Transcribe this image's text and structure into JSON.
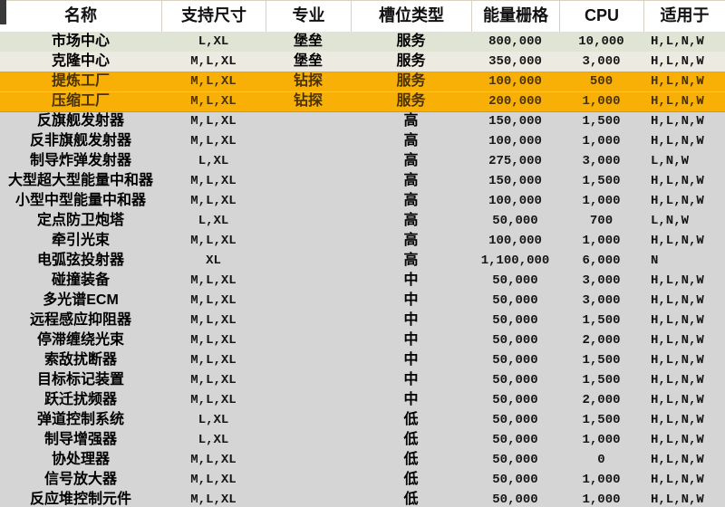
{
  "colors": {
    "header_bg": "#ffffff",
    "top_border": "#d9d2c3",
    "header_separator": "#d5d0c2",
    "row_sage": "#e0e4d5",
    "row_beige": "#edeae1",
    "row_amber": "#f9b006",
    "row_gray": "#d4d5d4",
    "amber_text": "#4a3300",
    "corner_mark": "#3a3a3a"
  },
  "table": {
    "columns": [
      {
        "key": "name",
        "label": "名称"
      },
      {
        "key": "sizes",
        "label": "支持尺寸"
      },
      {
        "key": "specialty",
        "label": "专业"
      },
      {
        "key": "slot",
        "label": "槽位类型"
      },
      {
        "key": "powergrid",
        "label": "能量栅格"
      },
      {
        "key": "cpu",
        "label": "CPU"
      },
      {
        "key": "applicable",
        "label": "适用于"
      }
    ],
    "rows": [
      {
        "name": "市场中心",
        "sizes": "L,XL",
        "specialty": "堡垒",
        "slot": "服务",
        "powergrid": "800,000",
        "cpu": "10,000",
        "applicable": "H,L,N,W",
        "style": "sage"
      },
      {
        "name": "克隆中心",
        "sizes": "M,L,XL",
        "specialty": "堡垒",
        "slot": "服务",
        "powergrid": "350,000",
        "cpu": "3,000",
        "applicable": "H,L,N,W",
        "style": "beige"
      },
      {
        "name": "提炼工厂",
        "sizes": "M,L,XL",
        "specialty": "钻探",
        "slot": "服务",
        "powergrid": "100,000",
        "cpu": "500",
        "applicable": "H,L,N,W",
        "style": "amber"
      },
      {
        "name": "压缩工厂",
        "sizes": "M,L,XL",
        "specialty": "钻探",
        "slot": "服务",
        "powergrid": "200,000",
        "cpu": "1,000",
        "applicable": "H,L,N,W",
        "style": "amber"
      },
      {
        "name": "反旗舰发射器",
        "sizes": "M,L,XL",
        "specialty": "",
        "slot": "高",
        "powergrid": "150,000",
        "cpu": "1,500",
        "applicable": "H,L,N,W",
        "style": "gray"
      },
      {
        "name": "反非旗舰发射器",
        "sizes": "M,L,XL",
        "specialty": "",
        "slot": "高",
        "powergrid": "100,000",
        "cpu": "1,000",
        "applicable": "H,L,N,W",
        "style": "gray"
      },
      {
        "name": "制导炸弹发射器",
        "sizes": "L,XL",
        "specialty": "",
        "slot": "高",
        "powergrid": "275,000",
        "cpu": "3,000",
        "applicable": "L,N,W",
        "style": "gray"
      },
      {
        "name": "大型超大型能量中和器",
        "sizes": "M,L,XL",
        "specialty": "",
        "slot": "高",
        "powergrid": "150,000",
        "cpu": "1,500",
        "applicable": "H,L,N,W",
        "style": "gray"
      },
      {
        "name": "小型中型能量中和器",
        "sizes": "M,L,XL",
        "specialty": "",
        "slot": "高",
        "powergrid": "100,000",
        "cpu": "1,000",
        "applicable": "H,L,N,W",
        "style": "gray"
      },
      {
        "name": "定点防卫炮塔",
        "sizes": "L,XL",
        "specialty": "",
        "slot": "高",
        "powergrid": "50,000",
        "cpu": "700",
        "applicable": "L,N,W",
        "style": "gray"
      },
      {
        "name": "牵引光束",
        "sizes": "M,L,XL",
        "specialty": "",
        "slot": "高",
        "powergrid": "100,000",
        "cpu": "1,000",
        "applicable": "H,L,N,W",
        "style": "gray"
      },
      {
        "name": "电弧弦投射器",
        "sizes": "XL",
        "specialty": "",
        "slot": "高",
        "powergrid": "1,100,000",
        "cpu": "6,000",
        "applicable": "N",
        "style": "gray"
      },
      {
        "name": "碰撞装备",
        "sizes": "M,L,XL",
        "specialty": "",
        "slot": "中",
        "powergrid": "50,000",
        "cpu": "3,000",
        "applicable": "H,L,N,W",
        "style": "gray"
      },
      {
        "name": "多光谱ECM",
        "sizes": "M,L,XL",
        "specialty": "",
        "slot": "中",
        "powergrid": "50,000",
        "cpu": "3,000",
        "applicable": "H,L,N,W",
        "style": "gray"
      },
      {
        "name": "远程感应抑阻器",
        "sizes": "M,L,XL",
        "specialty": "",
        "slot": "中",
        "powergrid": "50,000",
        "cpu": "1,500",
        "applicable": "H,L,N,W",
        "style": "gray"
      },
      {
        "name": "停滞缠绕光束",
        "sizes": "M,L,XL",
        "specialty": "",
        "slot": "中",
        "powergrid": "50,000",
        "cpu": "2,000",
        "applicable": "H,L,N,W",
        "style": "gray"
      },
      {
        "name": "索敌扰断器",
        "sizes": "M,L,XL",
        "specialty": "",
        "slot": "中",
        "powergrid": "50,000",
        "cpu": "1,500",
        "applicable": "H,L,N,W",
        "style": "gray"
      },
      {
        "name": "目标标记装置",
        "sizes": "M,L,XL",
        "specialty": "",
        "slot": "中",
        "powergrid": "50,000",
        "cpu": "1,500",
        "applicable": "H,L,N,W",
        "style": "gray"
      },
      {
        "name": "跃迁扰频器",
        "sizes": "M,L,XL",
        "specialty": "",
        "slot": "中",
        "powergrid": "50,000",
        "cpu": "2,000",
        "applicable": "H,L,N,W",
        "style": "gray"
      },
      {
        "name": "弹道控制系统",
        "sizes": "L,XL",
        "specialty": "",
        "slot": "低",
        "powergrid": "50,000",
        "cpu": "1,500",
        "applicable": "H,L,N,W",
        "style": "gray"
      },
      {
        "name": "制导增强器",
        "sizes": "L,XL",
        "specialty": "",
        "slot": "低",
        "powergrid": "50,000",
        "cpu": "1,000",
        "applicable": "H,L,N,W",
        "style": "gray"
      },
      {
        "name": "协处理器",
        "sizes": "M,L,XL",
        "specialty": "",
        "slot": "低",
        "powergrid": "50,000",
        "cpu": "0",
        "applicable": "H,L,N,W",
        "style": "gray"
      },
      {
        "name": "信号放大器",
        "sizes": "M,L,XL",
        "specialty": "",
        "slot": "低",
        "powergrid": "50,000",
        "cpu": "1,000",
        "applicable": "H,L,N,W",
        "style": "gray"
      },
      {
        "name": "反应堆控制元件",
        "sizes": "M,L,XL",
        "specialty": "",
        "slot": "低",
        "powergrid": "50,000",
        "cpu": "1,000",
        "applicable": "H,L,N,W",
        "style": "gray"
      }
    ]
  }
}
